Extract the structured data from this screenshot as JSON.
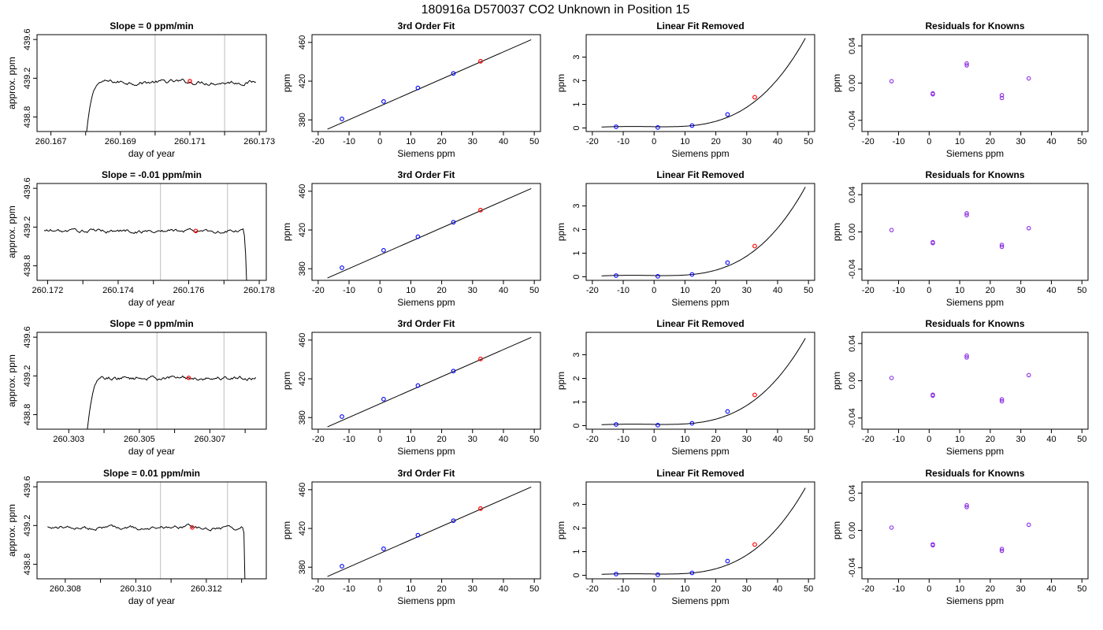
{
  "page_title": "180916a     D570037   CO2 Unknown in Position  15",
  "colors": {
    "line": "#000000",
    "known_point": "#0000ff",
    "unknown_point": "#ff0000",
    "residual_point": "#8a2be2",
    "vline": "#bebebe"
  },
  "chart_data": [
    {
      "type": "line",
      "title": "Slope =  0  ppm/min",
      "xlabel": "day of year",
      "ylabel": "approx. ppm",
      "xlim": [
        260.1666,
        260.1732
      ],
      "ylim": [
        438.65,
        439.65
      ],
      "xticks": [
        260.167,
        260.168,
        260.169,
        260.17,
        260.171,
        260.172,
        260.173
      ],
      "xticklabels": [
        "260.167",
        "",
        "260.169",
        "",
        "260.171",
        "",
        "260.173"
      ],
      "yticks": [
        438.8,
        439.2,
        439.6
      ],
      "yticklabels": [
        "438.8",
        "439.2",
        "439.6"
      ],
      "vlines": [
        260.17,
        260.172
      ],
      "rise": [
        260.168,
        260.1685
      ],
      "fall": null,
      "level": 439.16,
      "series_x": [
        260.168,
        260.1729
      ],
      "marker": {
        "x": 260.171,
        "y": 439.17
      }
    },
    {
      "type": "line",
      "title": "3rd Order Fit",
      "xlabel": "Siemens ppm",
      "ylabel": "ppm",
      "xlim": [
        -22,
        52
      ],
      "ylim": [
        368,
        468
      ],
      "xticks": [
        -20,
        -10,
        0,
        10,
        20,
        30,
        40,
        50
      ],
      "xticklabels": [
        "-20",
        "-10",
        "0",
        "10",
        "20",
        "30",
        "40",
        "50"
      ],
      "yticks": [
        380,
        420,
        460
      ],
      "yticklabels": [
        "380",
        "420",
        "460"
      ],
      "fit": {
        "x": [
          -17,
          49
        ],
        "intercept": 394.2,
        "slope": 1.4
      },
      "known_points": [
        [
          -12.3,
          381.0
        ],
        [
          1.2,
          399.0
        ],
        [
          12.3,
          413.0
        ],
        [
          23.8,
          428.0
        ]
      ],
      "unknown_points": [
        [
          32.6,
          440.5
        ]
      ]
    },
    {
      "type": "line",
      "title": "Linear Fit Removed",
      "xlabel": "Siemens ppm",
      "ylabel": "ppm",
      "xlim": [
        -22,
        52
      ],
      "ylim": [
        -0.15,
        3.95
      ],
      "xticks": [
        -20,
        -10,
        0,
        10,
        20,
        30,
        40,
        50
      ],
      "xticklabels": [
        "-20",
        "-10",
        "0",
        "10",
        "20",
        "30",
        "40",
        "50"
      ],
      "yticks": [
        0,
        1,
        2,
        3
      ],
      "yticklabels": [
        "0",
        "1",
        "2",
        "3"
      ],
      "curve": {
        "x": [
          -17,
          49
        ],
        "cubic_coeff": 3.5e-05,
        "center": 1,
        "offset": 0.05,
        "top": 3.8
      },
      "known_points": [
        [
          -12.3,
          0.05
        ],
        [
          1.2,
          0.02
        ],
        [
          12.3,
          0.1
        ],
        [
          23.8,
          0.57
        ]
      ],
      "unknown_points": [
        [
          32.6,
          1.3
        ]
      ]
    },
    {
      "type": "scatter",
      "title": "Residuals for Knowns",
      "xlabel": "Siemens ppm",
      "ylabel": "ppm",
      "xlim": [
        -22,
        52
      ],
      "ylim": [
        -0.052,
        0.052
      ],
      "xticks": [
        -20,
        -10,
        0,
        10,
        20,
        30,
        40,
        50
      ],
      "xticklabels": [
        "-20",
        "-10",
        "0",
        "10",
        "20",
        "30",
        "40",
        "50"
      ],
      "yticks": [
        -0.04,
        0.0,
        0.04
      ],
      "yticklabels": [
        "-0.04",
        "0.00",
        "0.04"
      ],
      "points": [
        [
          -12.3,
          0.002
        ],
        [
          1.2,
          -0.011
        ],
        [
          1.2,
          -0.012
        ],
        [
          12.3,
          0.021
        ],
        [
          12.3,
          0.019
        ],
        [
          23.8,
          -0.013
        ],
        [
          23.8,
          -0.016
        ],
        [
          32.6,
          0.005
        ]
      ]
    },
    {
      "type": "line",
      "title": "Slope =  -0.01  ppm/min",
      "xlabel": "day of year",
      "ylabel": "approx. ppm",
      "xlim": [
        260.1717,
        260.1782
      ],
      "ylim": [
        438.65,
        439.65
      ],
      "xticks": [
        260.172,
        260.173,
        260.174,
        260.175,
        260.176,
        260.177,
        260.178
      ],
      "xticklabels": [
        "260.172",
        "",
        "260.174",
        "",
        "260.176",
        "",
        "260.178"
      ],
      "yticks": [
        438.8,
        439.2,
        439.6
      ],
      "yticklabels": [
        "438.8",
        "439.2",
        "439.6"
      ],
      "vlines": [
        260.1752,
        260.1771
      ],
      "rise": null,
      "fall": [
        260.17755,
        260.17765
      ],
      "level": 439.16,
      "series_x": [
        260.1719,
        260.17765
      ],
      "marker": {
        "x": 260.1762,
        "y": 439.16
      }
    },
    {
      "type": "line",
      "title": "3rd Order Fit",
      "xlabel": "Siemens ppm",
      "ylabel": "ppm",
      "xlim": [
        -22,
        52
      ],
      "ylim": [
        368,
        468
      ],
      "xticks": [
        -20,
        -10,
        0,
        10,
        20,
        30,
        40,
        50
      ],
      "xticklabels": [
        "-20",
        "-10",
        "0",
        "10",
        "20",
        "30",
        "40",
        "50"
      ],
      "yticks": [
        380,
        420,
        460
      ],
      "yticklabels": [
        "380",
        "420",
        "460"
      ],
      "fit": {
        "x": [
          -17,
          49
        ],
        "intercept": 394.2,
        "slope": 1.4
      },
      "known_points": [
        [
          -12.3,
          381.0
        ],
        [
          1.2,
          399.0
        ],
        [
          12.3,
          413.0
        ],
        [
          23.8,
          428.0
        ]
      ],
      "unknown_points": [
        [
          32.6,
          440.5
        ]
      ]
    },
    {
      "type": "line",
      "title": "Linear Fit Removed",
      "xlabel": "Siemens ppm",
      "ylabel": "ppm",
      "xlim": [
        -22,
        52
      ],
      "ylim": [
        -0.15,
        3.95
      ],
      "xticks": [
        -20,
        -10,
        0,
        10,
        20,
        30,
        40,
        50
      ],
      "xticklabels": [
        "-20",
        "-10",
        "0",
        "10",
        "20",
        "30",
        "40",
        "50"
      ],
      "yticks": [
        0,
        1,
        2,
        3
      ],
      "yticklabels": [
        "0",
        "1",
        "2",
        "3"
      ],
      "curve": {
        "x": [
          -17,
          49
        ],
        "cubic_coeff": 3.5e-05,
        "center": 1,
        "offset": 0.05,
        "top": 3.8
      },
      "known_points": [
        [
          -12.3,
          0.05
        ],
        [
          1.2,
          0.02
        ],
        [
          12.3,
          0.1
        ],
        [
          23.8,
          0.6
        ]
      ],
      "unknown_points": [
        [
          32.6,
          1.3
        ]
      ]
    },
    {
      "type": "scatter",
      "title": "Residuals for Knowns",
      "xlabel": "Siemens ppm",
      "ylabel": "ppm",
      "xlim": [
        -22,
        52
      ],
      "ylim": [
        -0.052,
        0.052
      ],
      "xticks": [
        -20,
        -10,
        0,
        10,
        20,
        30,
        40,
        50
      ],
      "xticklabels": [
        "-20",
        "-10",
        "0",
        "10",
        "20",
        "30",
        "40",
        "50"
      ],
      "yticks": [
        -0.04,
        0.0,
        0.04
      ],
      "yticklabels": [
        "-0.04",
        "0.00",
        "0.04"
      ],
      "points": [
        [
          -12.3,
          0.002
        ],
        [
          1.2,
          -0.011
        ],
        [
          1.2,
          -0.012
        ],
        [
          12.3,
          0.02
        ],
        [
          12.3,
          0.018
        ],
        [
          23.8,
          -0.014
        ],
        [
          23.8,
          -0.016
        ],
        [
          32.6,
          0.004
        ]
      ]
    },
    {
      "type": "line",
      "title": "Slope =  0  ppm/min",
      "xlabel": "day of year",
      "ylabel": "approx. ppm",
      "xlim": [
        260.3021,
        260.3086
      ],
      "ylim": [
        438.65,
        439.65
      ],
      "xticks": [
        260.303,
        260.304,
        260.305,
        260.306,
        260.307,
        260.308
      ],
      "xticklabels": [
        "260.303",
        "",
        "260.305",
        "",
        "260.307",
        ""
      ],
      "yticks": [
        438.8,
        439.2,
        439.6
      ],
      "yticklabels": [
        "438.8",
        "439.2",
        "439.6"
      ],
      "vlines": [
        260.3055,
        260.3074
      ],
      "rise": [
        260.3035,
        260.304
      ],
      "fall": null,
      "level": 439.18,
      "series_x": [
        260.3035,
        260.3083
      ],
      "marker": {
        "x": 260.3064,
        "y": 439.18
      }
    },
    {
      "type": "line",
      "title": "3rd Order Fit",
      "xlabel": "Siemens ppm",
      "ylabel": "ppm",
      "xlim": [
        -22,
        52
      ],
      "ylim": [
        368,
        468
      ],
      "xticks": [
        -20,
        -10,
        0,
        10,
        20,
        30,
        40,
        50
      ],
      "xticklabels": [
        "-20",
        "-10",
        "0",
        "10",
        "20",
        "30",
        "40",
        "50"
      ],
      "yticks": [
        380,
        420,
        460
      ],
      "yticklabels": [
        "380",
        "420",
        "460"
      ],
      "fit": {
        "x": [
          -17,
          49
        ],
        "intercept": 394.2,
        "slope": 1.4
      },
      "known_points": [
        [
          -12.3,
          381.0
        ],
        [
          1.2,
          399.0
        ],
        [
          12.3,
          413.0
        ],
        [
          23.8,
          428.0
        ]
      ],
      "unknown_points": [
        [
          32.6,
          440.5
        ]
      ]
    },
    {
      "type": "line",
      "title": "Linear Fit Removed",
      "xlabel": "Siemens ppm",
      "ylabel": "ppm",
      "xlim": [
        -22,
        52
      ],
      "ylim": [
        -0.15,
        3.95
      ],
      "xticks": [
        -20,
        -10,
        0,
        10,
        20,
        30,
        40,
        50
      ],
      "xticklabels": [
        "-20",
        "-10",
        "0",
        "10",
        "20",
        "30",
        "40",
        "50"
      ],
      "yticks": [
        0,
        1,
        2,
        3
      ],
      "yticklabels": [
        "0",
        "1",
        "2",
        "3"
      ],
      "curve": {
        "x": [
          -17,
          49
        ],
        "cubic_coeff": 3.5e-05,
        "center": 1,
        "offset": 0.05,
        "top": 3.7
      },
      "known_points": [
        [
          -12.3,
          0.05
        ],
        [
          1.2,
          0.02
        ],
        [
          12.3,
          0.1
        ],
        [
          23.8,
          0.6
        ]
      ],
      "unknown_points": [
        [
          32.6,
          1.3
        ]
      ]
    },
    {
      "type": "scatter",
      "title": "Residuals for Knowns",
      "xlabel": "Siemens ppm",
      "ylabel": "ppm",
      "xlim": [
        -22,
        52
      ],
      "ylim": [
        -0.052,
        0.052
      ],
      "xticks": [
        -20,
        -10,
        0,
        10,
        20,
        30,
        40,
        50
      ],
      "xticklabels": [
        "-20",
        "-10",
        "0",
        "10",
        "20",
        "30",
        "40",
        "50"
      ],
      "yticks": [
        -0.04,
        0.0,
        0.04
      ],
      "yticklabels": [
        "-0.04",
        "0.00",
        "0.04"
      ],
      "points": [
        [
          -12.3,
          0.003
        ],
        [
          1.2,
          -0.015
        ],
        [
          1.2,
          -0.016
        ],
        [
          12.3,
          0.027
        ],
        [
          12.3,
          0.025
        ],
        [
          23.8,
          -0.02
        ],
        [
          23.8,
          -0.022
        ],
        [
          32.6,
          0.006
        ]
      ]
    },
    {
      "type": "line",
      "title": "Slope =  0.01  ppm/min",
      "xlabel": "day of year",
      "ylabel": "approx. ppm",
      "xlim": [
        260.3072,
        260.3137
      ],
      "ylim": [
        438.65,
        439.65
      ],
      "xticks": [
        260.308,
        260.309,
        260.31,
        260.311,
        260.312,
        260.313
      ],
      "xticklabels": [
        "260.308",
        "",
        "260.310",
        "",
        "260.312",
        ""
      ],
      "yticks": [
        438.8,
        439.2,
        439.6
      ],
      "yticklabels": [
        "438.8",
        "439.2",
        "439.6"
      ],
      "vlines": [
        260.3107,
        260.3126
      ],
      "rise": null,
      "fall": [
        260.31305,
        260.3131
      ],
      "level": 439.18,
      "series_x": [
        260.3075,
        260.3131
      ],
      "marker": {
        "x": 260.3116,
        "y": 439.18
      }
    },
    {
      "type": "line",
      "title": "3rd Order Fit",
      "xlabel": "Siemens ppm",
      "ylabel": "ppm",
      "xlim": [
        -22,
        52
      ],
      "ylim": [
        368,
        468
      ],
      "xticks": [
        -20,
        -10,
        0,
        10,
        20,
        30,
        40,
        50
      ],
      "xticklabels": [
        "-20",
        "-10",
        "0",
        "10",
        "20",
        "30",
        "40",
        "50"
      ],
      "yticks": [
        380,
        420,
        460
      ],
      "yticklabels": [
        "380",
        "420",
        "460"
      ],
      "fit": {
        "x": [
          -17,
          49
        ],
        "intercept": 394.2,
        "slope": 1.4
      },
      "known_points": [
        [
          -12.3,
          381.0
        ],
        [
          1.2,
          399.0
        ],
        [
          12.3,
          413.0
        ],
        [
          23.8,
          428.0
        ]
      ],
      "unknown_points": [
        [
          32.6,
          440.5
        ]
      ]
    },
    {
      "type": "line",
      "title": "Linear Fit Removed",
      "xlabel": "Siemens ppm",
      "ylabel": "ppm",
      "xlim": [
        -22,
        52
      ],
      "ylim": [
        -0.15,
        3.95
      ],
      "xticks": [
        -20,
        -10,
        0,
        10,
        20,
        30,
        40,
        50
      ],
      "xticklabels": [
        "-20",
        "-10",
        "0",
        "10",
        "20",
        "30",
        "40",
        "50"
      ],
      "yticks": [
        0,
        1,
        2,
        3
      ],
      "yticklabels": [
        "0",
        "1",
        "2",
        "3"
      ],
      "curve": {
        "x": [
          -17,
          49
        ],
        "cubic_coeff": 3.5e-05,
        "center": 1,
        "offset": 0.05,
        "top": 3.7
      },
      "known_points": [
        [
          -12.3,
          0.05
        ],
        [
          1.2,
          0.02
        ],
        [
          12.3,
          0.1
        ],
        [
          23.8,
          0.6
        ]
      ],
      "unknown_points": [
        [
          32.6,
          1.3
        ]
      ]
    },
    {
      "type": "scatter",
      "title": "Residuals for Knowns",
      "xlabel": "Siemens ppm",
      "ylabel": "ppm",
      "xlim": [
        -22,
        52
      ],
      "ylim": [
        -0.052,
        0.052
      ],
      "xticks": [
        -20,
        -10,
        0,
        10,
        20,
        30,
        40,
        50
      ],
      "xticklabels": [
        "-20",
        "-10",
        "0",
        "10",
        "20",
        "30",
        "40",
        "50"
      ],
      "yticks": [
        -0.04,
        0.0,
        0.04
      ],
      "yticklabels": [
        "-0.04",
        "0.00",
        "0.04"
      ],
      "points": [
        [
          -12.3,
          0.003
        ],
        [
          1.2,
          -0.015
        ],
        [
          1.2,
          -0.016
        ],
        [
          12.3,
          0.027
        ],
        [
          12.3,
          0.025
        ],
        [
          23.8,
          -0.02
        ],
        [
          23.8,
          -0.022
        ],
        [
          32.6,
          0.006
        ]
      ]
    }
  ]
}
